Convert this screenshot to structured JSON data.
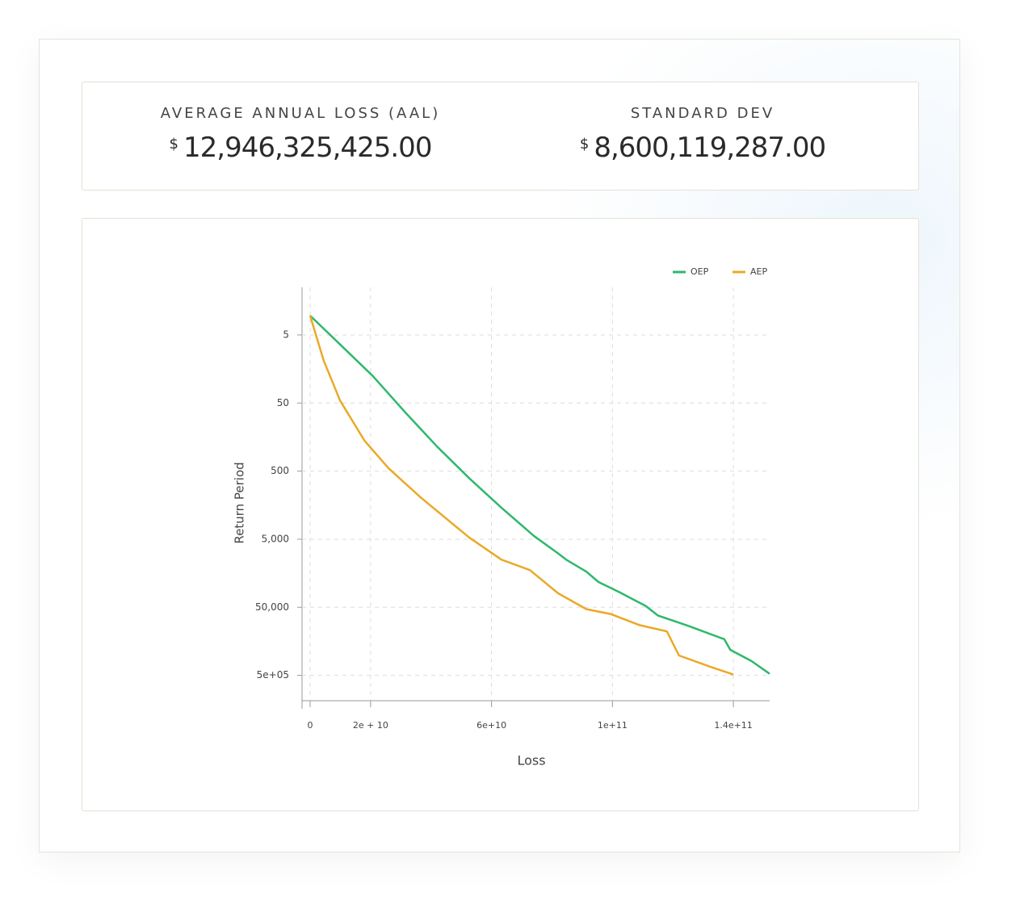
{
  "stats": [
    {
      "label": "AVERAGE ANNUAL LOSS (AAL)",
      "currency": "$",
      "value": "12,946,325,425.00"
    },
    {
      "label": "STANDARD DEV",
      "currency": "$",
      "value": "8,600,119,287.00"
    }
  ],
  "chart_data": {
    "type": "line",
    "x_label": "Loss",
    "y_label": "Return Period",
    "log_scale_y": true,
    "y_reversed": true,
    "grid": true,
    "legend": "top-right",
    "xlim": [
      0,
      152000000000
    ],
    "ylim": [
      1,
      1000000
    ],
    "xticks": [
      0,
      {
        "value": 20000000000,
        "label": "2e + 10"
      },
      {
        "value": 60000000000,
        "label": "6e+10"
      },
      {
        "value": 100000000000,
        "label": "1e+11"
      },
      {
        "value": 140000000000,
        "label": "1.4e+11"
      }
    ],
    "yticks": [
      5,
      50,
      500,
      {
        "value": 5000,
        "label": "5,000"
      },
      {
        "value": 50000,
        "label": "50,000"
      },
      {
        "value": 500000,
        "label": "5e+05"
      }
    ],
    "series": [
      {
        "name": "OEP",
        "color": "#2fb86b",
        "x": [
          0,
          9900000000,
          20700000000,
          31400000000,
          42000000000,
          52700000000,
          63400000000,
          74000000000,
          82000000000,
          84700000000,
          91400000000,
          95400000000,
          102000000000,
          111000000000,
          115000000000,
          125000000000,
          137000000000,
          139000000000,
          146000000000,
          152000000000
        ],
        "values": [
          2.6,
          6.9,
          20,
          68,
          218,
          641,
          1740,
          4470,
          8070,
          10000,
          15000,
          21300,
          29500,
          47800,
          66000,
          93500,
          147000,
          211000,
          308000,
          474000
        ]
      },
      {
        "name": "AEP",
        "color": "#eaa928",
        "x": [
          0,
          4500000000,
          9900000000,
          17900000000,
          25900000000,
          36600000000,
          52600000000,
          63300000000,
          72700000000,
          82000000000,
          91400000000,
          99400000000,
          109000000000,
          118000000000,
          122000000000,
          133000000000,
          140000000000
        ],
        "values": [
          2.6,
          11.9,
          46,
          176,
          452,
          1220,
          4710,
          10000,
          14200,
          31100,
          53300,
          62700,
          91400,
          113000,
          255000,
          382000,
          486000
        ]
      }
    ]
  }
}
